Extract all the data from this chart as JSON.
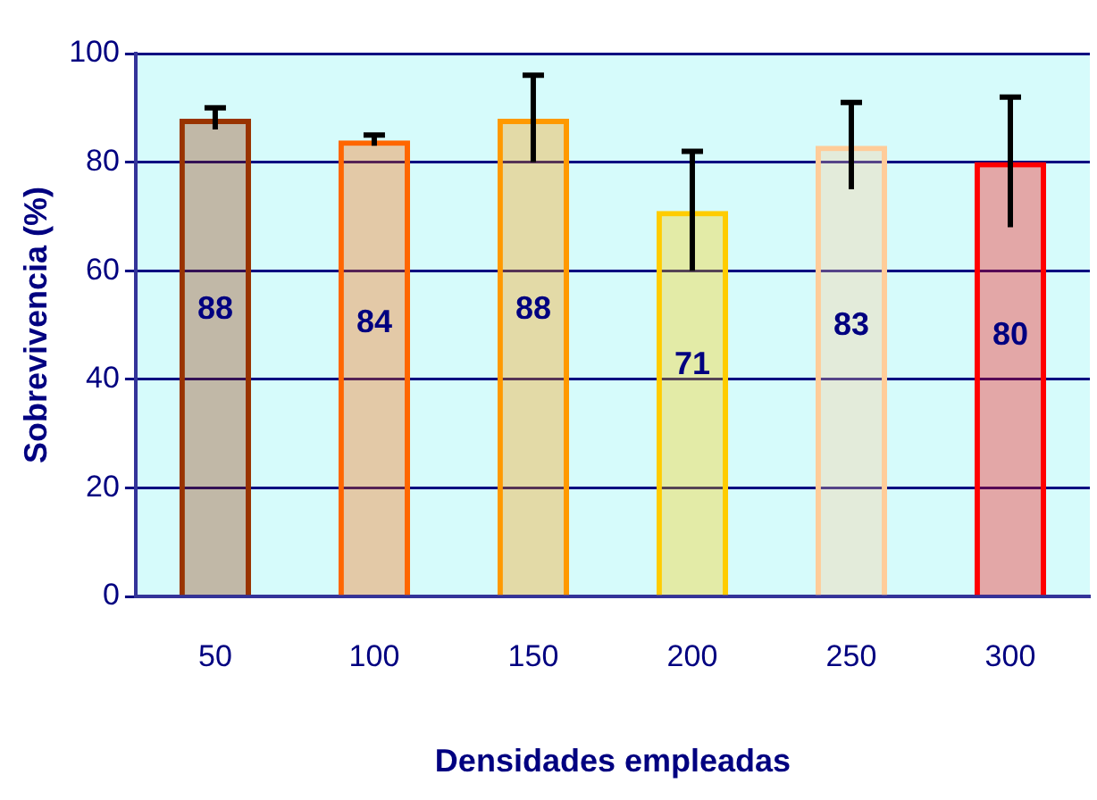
{
  "chart_data": {
    "type": "bar",
    "xlabel": "Densidades empleadas",
    "ylabel": "Sobrevivencia (%)",
    "categories": [
      "50",
      "100",
      "150",
      "200",
      "250",
      "300"
    ],
    "values": [
      88,
      84,
      88,
      71,
      83,
      80
    ],
    "errors": [
      2,
      1,
      8,
      11,
      8,
      12
    ],
    "colors": [
      "#993300",
      "#ff6600",
      "#ff9900",
      "#ffcc00",
      "#ffcc99",
      "#ff0000"
    ],
    "data_labels": true,
    "ylim": [
      0,
      100
    ],
    "yticks": [
      0,
      20,
      40,
      60,
      80,
      100
    ],
    "grid": "y",
    "legend": false
  }
}
